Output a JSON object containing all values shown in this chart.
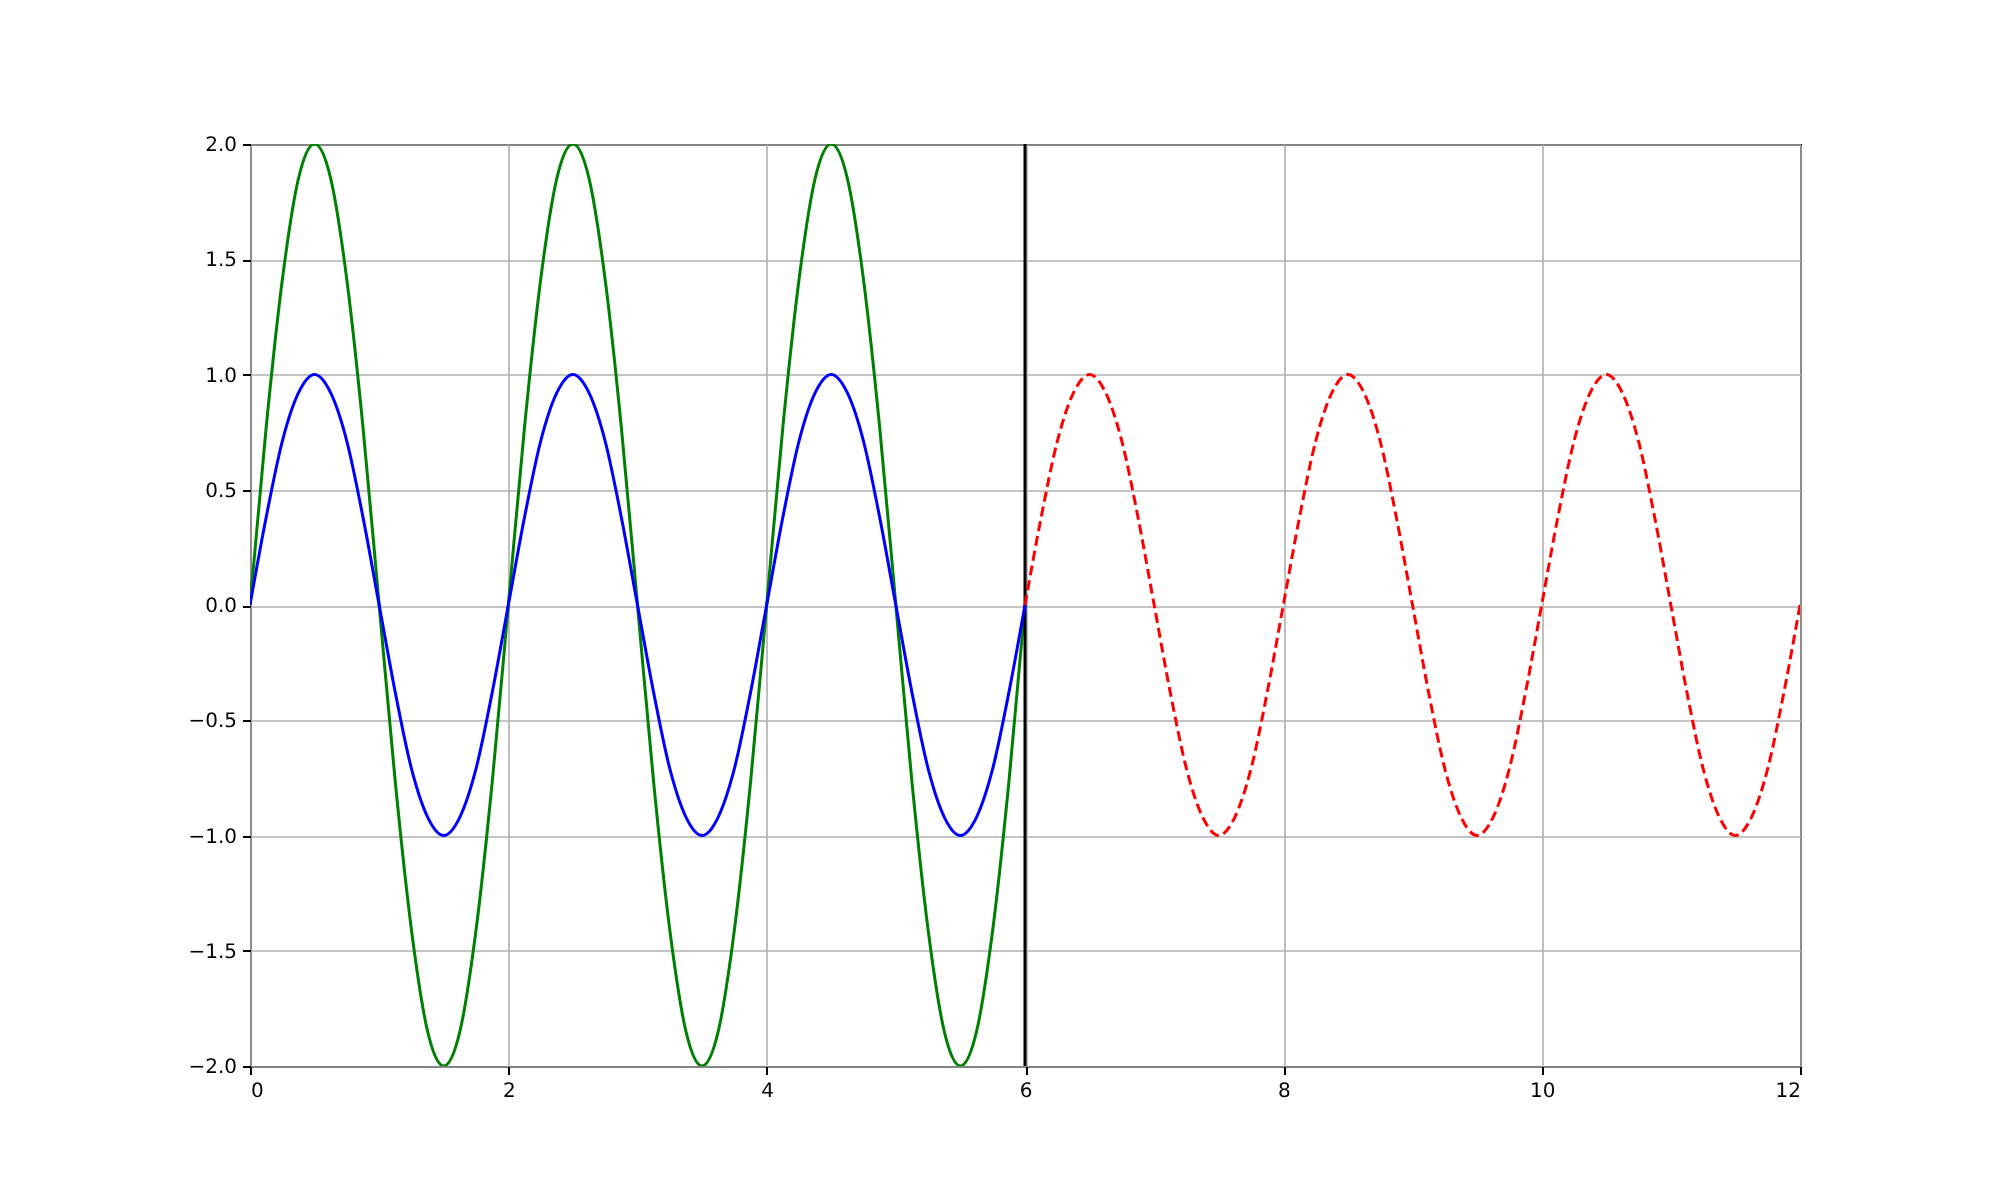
{
  "chart_data": {
    "type": "line",
    "x": [
      0,
      0.125,
      0.25,
      0.375,
      0.5,
      0.625,
      0.75,
      0.875,
      1,
      1.125,
      1.25,
      1.375,
      1.5,
      1.625,
      1.75,
      1.875,
      2,
      2.125,
      2.25,
      2.375,
      2.5,
      2.625,
      2.75,
      2.875,
      3,
      3.125,
      3.25,
      3.375,
      3.5,
      3.625,
      3.75,
      3.875,
      4,
      4.125,
      4.25,
      4.375,
      4.5,
      4.625,
      4.75,
      4.875,
      5,
      5.125,
      5.25,
      5.375,
      5.5,
      5.625,
      5.75,
      5.875,
      6
    ],
    "series": [
      {
        "color": "#008000",
        "line_style": "solid",
        "values": [
          0,
          0.77,
          1.41,
          1.85,
          2,
          1.85,
          1.41,
          0.77,
          0,
          -0.77,
          -1.41,
          -1.85,
          -2,
          -1.85,
          -1.41,
          -0.77,
          0,
          0.77,
          1.41,
          1.85,
          2,
          1.85,
          1.41,
          0.77,
          0,
          -0.77,
          -1.41,
          -1.85,
          -2,
          -1.85,
          -1.41,
          -0.77,
          0,
          0.77,
          1.41,
          1.85,
          2,
          1.85,
          1.41,
          0.77,
          0,
          -0.77,
          -1.41,
          -1.85,
          -2,
          -1.85,
          -1.41,
          -0.77,
          0
        ]
      },
      {
        "color": "#0000ff",
        "line_style": "solid",
        "values": [
          0,
          0.38,
          0.71,
          0.92,
          1,
          0.92,
          0.71,
          0.38,
          0,
          -0.38,
          -0.71,
          -0.92,
          -1,
          -0.92,
          -0.71,
          -0.38,
          0,
          0.38,
          0.71,
          0.92,
          1,
          0.92,
          0.71,
          0.38,
          0,
          -0.38,
          -0.71,
          -0.92,
          -1,
          -0.92,
          -0.71,
          -0.38,
          0,
          0.38,
          0.71,
          0.92,
          1,
          0.92,
          0.71,
          0.38,
          0,
          -0.38,
          -0.71,
          -0.92,
          -1,
          -0.92,
          -0.71,
          -0.38,
          0
        ]
      },
      {
        "color": "#ff0000",
        "line_style": "dashed",
        "x": [
          6,
          6.125,
          6.25,
          6.375,
          6.5,
          6.625,
          6.75,
          6.875,
          7,
          7.125,
          7.25,
          7.375,
          7.5,
          7.625,
          7.75,
          7.875,
          8,
          8.125,
          8.25,
          8.375,
          8.5,
          8.625,
          8.75,
          8.875,
          9,
          9.125,
          9.25,
          9.375,
          9.5,
          9.625,
          9.75,
          9.875,
          10,
          10.125,
          10.25,
          10.375,
          10.5,
          10.625,
          10.75,
          10.875,
          11,
          11.125,
          11.25,
          11.375,
          11.5,
          11.625,
          11.75,
          11.875,
          12
        ],
        "values": [
          0,
          0.38,
          0.71,
          0.92,
          1,
          0.92,
          0.71,
          0.38,
          0,
          -0.38,
          -0.71,
          -0.92,
          -1,
          -0.92,
          -0.71,
          -0.38,
          0,
          0.38,
          0.71,
          0.92,
          1,
          0.92,
          0.71,
          0.38,
          0,
          -0.38,
          -0.71,
          -0.92,
          -1,
          -0.92,
          -0.71,
          -0.38,
          0,
          0.38,
          0.71,
          0.92,
          1,
          0.92,
          0.71,
          0.38,
          0,
          -0.38,
          -0.71,
          -0.92,
          -1,
          -0.92,
          -0.71,
          -0.38,
          0
        ]
      }
    ],
    "ref_lines": [
      {
        "axis": "x",
        "value": 6,
        "color": "#000000"
      }
    ],
    "xlim": [
      0,
      12
    ],
    "xticks": [
      0,
      2,
      4,
      6,
      8,
      10,
      12
    ],
    "ylim": [
      -2,
      2
    ],
    "yticks": [
      {
        "value": -2,
        "label": "−2.0"
      },
      {
        "value": -1.5,
        "label": "−1.5"
      },
      {
        "value": -1,
        "label": "−1.0"
      },
      {
        "value": -0.5,
        "label": "−0.5"
      },
      {
        "value": 0,
        "label": "0.0"
      },
      {
        "value": 0.5,
        "label": "0.5"
      },
      {
        "value": 1,
        "label": "1.0"
      },
      {
        "value": 1.5,
        "label": "1.5"
      },
      {
        "value": 2,
        "label": "2.0"
      }
    ],
    "grid": true
  }
}
